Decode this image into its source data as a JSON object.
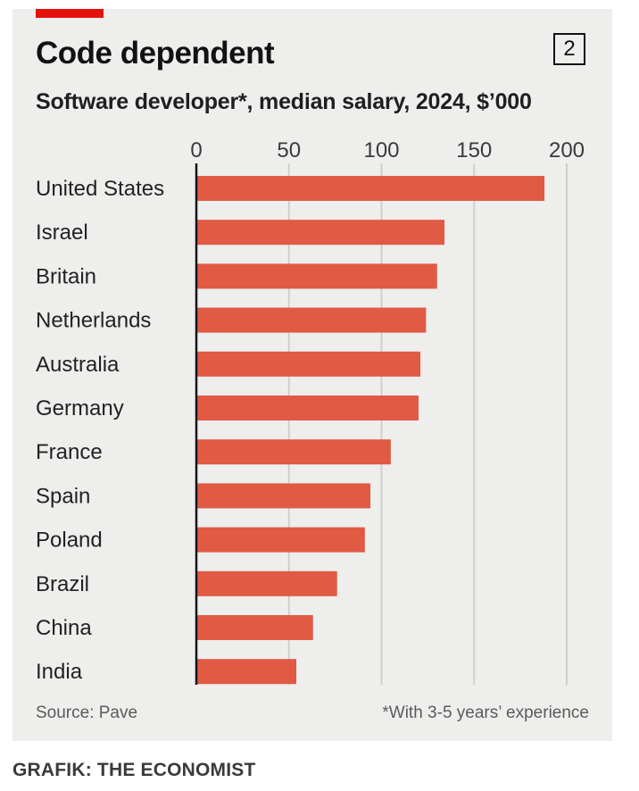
{
  "header": {
    "title": "Code dependent",
    "chart_number": "2",
    "subtitle": "Software developer*, median salary, 2024, $’000"
  },
  "footer": {
    "source": "Source: Pave",
    "footnote": "*With 3-5 years’ experience",
    "credit": "GRAFIK: THE ECONOMIST"
  },
  "colors": {
    "bar": "#e05a44",
    "accent": "#e3120b",
    "background": "#eeeeec",
    "grid": "#cfcfcb",
    "text": "#121212"
  },
  "chart_data": {
    "type": "bar",
    "orientation": "horizontal",
    "title": "Code dependent",
    "subtitle": "Software developer*, median salary, 2024, $’000",
    "xlabel": "",
    "ylabel": "",
    "xlim": [
      0,
      200
    ],
    "ticks": [
      0,
      50,
      100,
      150,
      200
    ],
    "tick_labels": [
      "0",
      "50",
      "100",
      "150",
      "200"
    ],
    "grid": true,
    "categories": [
      "United States",
      "Israel",
      "Britain",
      "Netherlands",
      "Australia",
      "Germany",
      "France",
      "Spain",
      "Poland",
      "Brazil",
      "China",
      "India"
    ],
    "values": [
      188,
      134,
      130,
      124,
      121,
      120,
      105,
      94,
      91,
      76,
      63,
      54
    ]
  }
}
